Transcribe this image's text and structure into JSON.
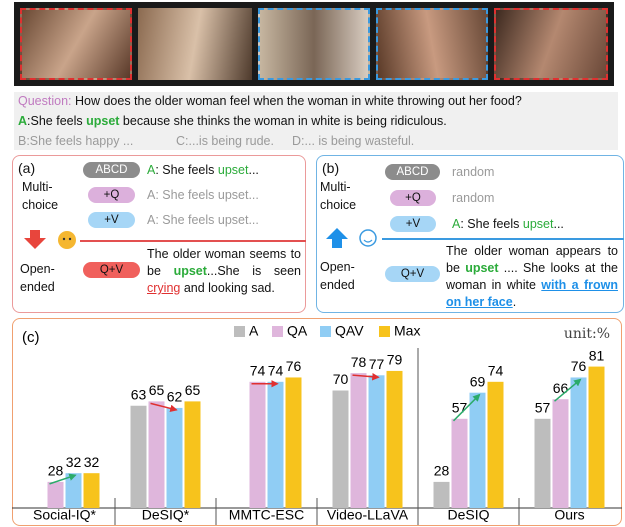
{
  "question": {
    "label": "Question:",
    "text": " How does the older woman feel when the woman in white throwing out her food?",
    "answer": {
      "letter": "A",
      "before": ":She feels ",
      "key": "upset",
      "after": " because she thinks the woman in white is being ridiculous."
    },
    "distractors": [
      "B:She feels happy ...",
      "C:...is being rude.",
      "D:... is being wasteful."
    ]
  },
  "panel_a": {
    "label": "(a)",
    "multi_choice": [
      "Multi-",
      "choice"
    ],
    "open_ended": [
      "Open-",
      "ended"
    ],
    "rows": [
      {
        "pill": "ABCD",
        "letter": "A",
        "before": ": She feels ",
        "key": "upset",
        "after": "..."
      },
      {
        "pill": "+Q",
        "text": "A: She feels upset..."
      },
      {
        "pill": "+V",
        "text": "A: She feels upset..."
      }
    ],
    "open": {
      "pill": "Q+V",
      "before": "The older woman seems to be ",
      "key": "upset",
      "middle": "...She is seen ",
      "key2": "crying",
      "after": " and looking sad."
    }
  },
  "panel_b": {
    "label": "(b)",
    "multi_choice": [
      "Multi-",
      "choice"
    ],
    "open_ended": [
      "Open-",
      "ended"
    ],
    "rows": [
      {
        "pill": "ABCD",
        "text": "random"
      },
      {
        "pill": "+Q",
        "text": "random"
      },
      {
        "pill": "+V",
        "letter": "A",
        "before": ": She feels ",
        "key": "upset",
        "after": "..."
      }
    ],
    "open": {
      "pill": "Q+V",
      "before": "The older woman appears to be ",
      "key": "upset",
      "middle": " .... She looks at the woman in white ",
      "key2": "with a frown on her face",
      "after": "."
    }
  },
  "chart_data": {
    "type": "bar",
    "label": "(c)",
    "unit_label": "unit:%",
    "categories": [
      "Social-IQ*",
      "DeSIQ*",
      "MMTC-ESC",
      "Video-LLaVA",
      "DeSIQ",
      "Ours"
    ],
    "series": [
      {
        "name": "A",
        "color": "#bdbdbd",
        "values": [
          null,
          63,
          null,
          70,
          28,
          57
        ]
      },
      {
        "name": "QA",
        "color": "#dfb6dc",
        "values": [
          28,
          65,
          74,
          78,
          57,
          66
        ]
      },
      {
        "name": "QAV",
        "color": "#90cdf4",
        "values": [
          32,
          62,
          74,
          77,
          69,
          76
        ]
      },
      {
        "name": "Max",
        "color": "#f7c31c",
        "values": [
          32,
          65,
          76,
          79,
          74,
          81
        ]
      }
    ],
    "ylim": [
      16,
      90
    ]
  }
}
